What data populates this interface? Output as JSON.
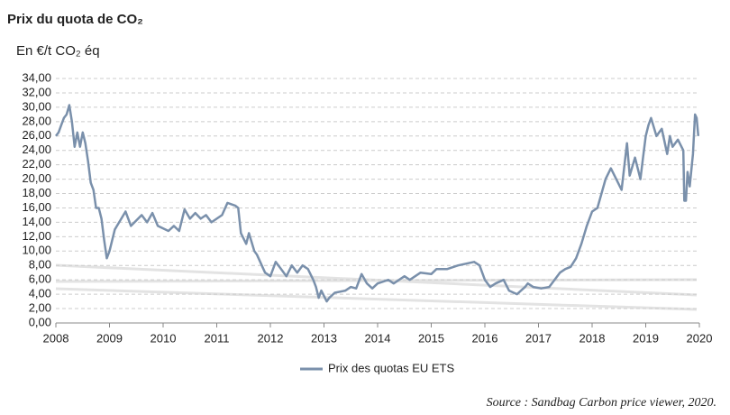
{
  "chart_data": {
    "type": "line",
    "title": "Prix du quota de CO₂",
    "subtitle": "En €/t CO₂ éq",
    "source": "Source : Sandbag Carbon price viewer, 2020.",
    "x": [
      2008.0,
      2008.05,
      2008.1,
      2008.15,
      2008.2,
      2008.25,
      2008.3,
      2008.35,
      2008.4,
      2008.45,
      2008.5,
      2008.55,
      2008.6,
      2008.65,
      2008.7,
      2008.75,
      2008.8,
      2008.85,
      2008.9,
      2008.95,
      2009.0,
      2009.1,
      2009.3,
      2009.4,
      2009.6,
      2009.7,
      2009.8,
      2009.9,
      2010.1,
      2010.2,
      2010.3,
      2010.4,
      2010.5,
      2010.6,
      2010.7,
      2010.8,
      2010.9,
      2011.0,
      2011.1,
      2011.2,
      2011.35,
      2011.4,
      2011.45,
      2011.55,
      2011.6,
      2011.7,
      2011.75,
      2011.9,
      2012.0,
      2012.1,
      2012.2,
      2012.3,
      2012.4,
      2012.5,
      2012.6,
      2012.7,
      2012.8,
      2012.85,
      2012.9,
      2012.95,
      2013.05,
      2013.1,
      2013.2,
      2013.4,
      2013.5,
      2013.6,
      2013.7,
      2013.8,
      2013.9,
      2014.0,
      2014.2,
      2014.3,
      2014.5,
      2014.6,
      2014.8,
      2015.0,
      2015.1,
      2015.3,
      2015.5,
      2015.8,
      2015.9,
      2016.0,
      2016.1,
      2016.2,
      2016.35,
      2016.45,
      2016.6,
      2016.75,
      2016.8,
      2016.9,
      2017.05,
      2017.2,
      2017.3,
      2017.4,
      2017.5,
      2017.6,
      2017.7,
      2017.8,
      2017.9,
      2018.0,
      2018.1,
      2018.25,
      2018.35,
      2018.45,
      2018.55,
      2018.65,
      2018.7,
      2018.8,
      2018.9,
      2018.95,
      2019.0,
      2019.05,
      2019.1,
      2019.2,
      2019.3,
      2019.4,
      2019.45,
      2019.5,
      2019.6,
      2019.7,
      2019.72,
      2019.75,
      2019.78,
      2019.82,
      2019.86,
      2019.88,
      2019.92,
      2019.95,
      2019.98
    ],
    "series": [
      {
        "name": "Prix des quotas EU ETS",
        "color": "#7a90ab",
        "values": [
          26,
          26.5,
          27.5,
          28.5,
          29,
          30.3,
          28,
          24.5,
          26.5,
          24.5,
          26.5,
          25,
          22.5,
          19.5,
          18.5,
          16,
          16,
          14.5,
          11.5,
          9,
          10,
          13,
          15.5,
          13.5,
          15,
          14,
          15.3,
          13.5,
          12.8,
          13.5,
          12.8,
          15.8,
          14.5,
          15.3,
          14.5,
          15,
          14,
          14.5,
          15,
          16.7,
          16.3,
          16,
          12.5,
          11,
          12.5,
          10,
          9.5,
          7,
          6.5,
          8.5,
          7.5,
          6.5,
          8,
          7,
          8,
          7.5,
          6,
          5,
          3.5,
          4.5,
          3,
          3.5,
          4.2,
          4.5,
          5,
          4.8,
          6.8,
          5.5,
          4.8,
          5.5,
          6,
          5.5,
          6.5,
          6,
          7,
          6.8,
          7.5,
          7.5,
          8,
          8.5,
          8,
          6,
          5,
          5.5,
          6,
          4.5,
          4,
          5,
          5.5,
          5,
          4.8,
          5,
          6,
          7,
          7.5,
          7.8,
          9,
          11,
          13.5,
          15.5,
          16,
          20,
          21.5,
          20,
          18.5,
          25,
          20.5,
          23,
          20,
          23,
          26,
          27.5,
          28.5,
          26,
          27,
          23.5,
          26,
          24.5,
          25.5,
          24,
          17,
          17,
          21,
          19,
          22,
          23.5,
          29,
          28.5,
          26
        ]
      }
    ],
    "xlim": [
      2008,
      2020
    ],
    "xticks": [
      2008,
      2009,
      2010,
      2011,
      2012,
      2013,
      2014,
      2015,
      2016,
      2017,
      2018,
      2019,
      2020
    ],
    "ylim": [
      0,
      34
    ],
    "yticks": [
      {
        "value": 0,
        "label": "0,00"
      },
      {
        "value": 2,
        "label": "2,00"
      },
      {
        "value": 4,
        "label": "4,00"
      },
      {
        "value": 6,
        "label": "6,00"
      },
      {
        "value": 8,
        "label": "8,00"
      },
      {
        "value": 10,
        "label": "10,00"
      },
      {
        "value": 12,
        "label": "12,00"
      },
      {
        "value": 14,
        "label": "14,00"
      },
      {
        "value": 16,
        "label": "16,00"
      },
      {
        "value": 18,
        "label": "18,00"
      },
      {
        "value": 20,
        "label": "20,00"
      },
      {
        "value": 22,
        "label": "22,00"
      },
      {
        "value": 24,
        "label": "24,00"
      },
      {
        "value": 26,
        "label": "26,00"
      },
      {
        "value": 28,
        "label": "28,00"
      },
      {
        "value": 30,
        "label": "30,00"
      },
      {
        "value": 32,
        "label": "32,00"
      },
      {
        "value": 34,
        "label": "34,00"
      }
    ],
    "grid": true
  }
}
